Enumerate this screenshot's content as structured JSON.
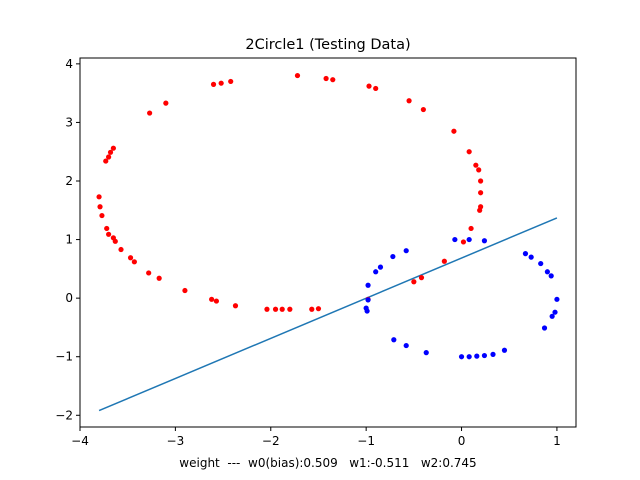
{
  "chart_data": {
    "type": "scatter",
    "title": "2Circle1 (Testing Data)",
    "xlabel": "weight  ---  w0(bias):0.509   w1:-0.511   w2:0.745",
    "ylabel": "",
    "xlim": [
      -4.0,
      1.2
    ],
    "ylim": [
      -2.2,
      4.1
    ],
    "xticks": [
      -4,
      -3,
      -2,
      -1,
      0,
      1
    ],
    "yticks": [
      -2,
      -1,
      0,
      1,
      2,
      3,
      4
    ],
    "grid": false,
    "series": [
      {
        "color": "#ff0000",
        "points": [
          [
            -1.72,
            3.8
          ],
          [
            -1.42,
            3.75
          ],
          [
            -1.35,
            3.73
          ],
          [
            -2.42,
            3.7
          ],
          [
            -2.52,
            3.67
          ],
          [
            -2.6,
            3.65
          ],
          [
            -0.97,
            3.62
          ],
          [
            -0.9,
            3.58
          ],
          [
            -3.1,
            3.33
          ],
          [
            -0.55,
            3.37
          ],
          [
            -0.4,
            3.22
          ],
          [
            -3.27,
            3.16
          ],
          [
            -0.08,
            2.85
          ],
          [
            -3.65,
            2.56
          ],
          [
            -3.68,
            2.49
          ],
          [
            -3.7,
            2.41
          ],
          [
            -3.73,
            2.34
          ],
          [
            0.08,
            2.5
          ],
          [
            0.15,
            2.27
          ],
          [
            0.18,
            2.19
          ],
          [
            0.2,
            2.0
          ],
          [
            0.2,
            1.8
          ],
          [
            -3.8,
            1.73
          ],
          [
            -3.79,
            1.56
          ],
          [
            0.2,
            1.56
          ],
          [
            0.19,
            1.5
          ],
          [
            -3.77,
            1.41
          ],
          [
            -3.72,
            1.19
          ],
          [
            -3.7,
            1.09
          ],
          [
            -3.65,
            1.03
          ],
          [
            -3.63,
            0.97
          ],
          [
            0.1,
            1.19
          ],
          [
            0.02,
            0.96
          ],
          [
            -3.57,
            0.83
          ],
          [
            -3.47,
            0.69
          ],
          [
            -3.43,
            0.62
          ],
          [
            -0.18,
            0.63
          ],
          [
            -3.28,
            0.43
          ],
          [
            -3.17,
            0.34
          ],
          [
            -0.42,
            0.35
          ],
          [
            -0.5,
            0.28
          ],
          [
            -2.9,
            0.13
          ],
          [
            -2.62,
            -0.02
          ],
          [
            -2.57,
            -0.05
          ],
          [
            -2.37,
            -0.13
          ],
          [
            -2.04,
            -0.19
          ],
          [
            -1.95,
            -0.19
          ],
          [
            -1.88,
            -0.19
          ],
          [
            -1.8,
            -0.19
          ],
          [
            -1.57,
            -0.19
          ],
          [
            -1.5,
            -0.18
          ],
          [
            -0.98,
            -0.02
          ]
        ]
      },
      {
        "color": "#0000ff",
        "points": [
          [
            -0.07,
            1.0
          ],
          [
            0.08,
            1.0
          ],
          [
            0.24,
            0.98
          ],
          [
            -0.58,
            0.81
          ],
          [
            -0.72,
            0.71
          ],
          [
            0.67,
            0.76
          ],
          [
            0.73,
            0.7
          ],
          [
            0.83,
            0.59
          ],
          [
            -0.85,
            0.53
          ],
          [
            -0.9,
            0.45
          ],
          [
            0.9,
            0.45
          ],
          [
            0.94,
            0.38
          ],
          [
            -0.98,
            0.22
          ],
          [
            -0.98,
            -0.03
          ],
          [
            1.0,
            -0.02
          ],
          [
            -1.0,
            -0.17
          ],
          [
            -0.99,
            -0.22
          ],
          [
            0.98,
            -0.24
          ],
          [
            0.95,
            -0.31
          ],
          [
            0.87,
            -0.51
          ],
          [
            -0.71,
            -0.71
          ],
          [
            -0.58,
            -0.81
          ],
          [
            -0.37,
            -0.93
          ],
          [
            0.45,
            -0.89
          ],
          [
            0.33,
            -0.96
          ],
          [
            0.24,
            -0.98
          ],
          [
            0.16,
            -0.99
          ],
          [
            0.08,
            -1.0
          ],
          [
            0.0,
            -1.0
          ]
        ]
      }
    ],
    "line": {
      "color": "#1f77b4",
      "x": [
        -3.8,
        1.0
      ],
      "y": [
        -1.92,
        1.37
      ]
    }
  }
}
